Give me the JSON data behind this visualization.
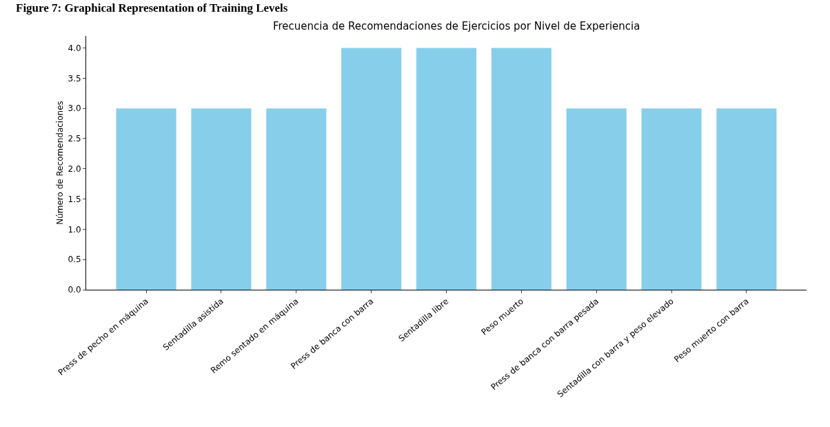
{
  "chart_data": {
    "type": "bar",
    "title": "Frecuencia de Recomendaciones de Ejercicios por Nivel de Experiencia",
    "ylabel": "Número de Recomendaciones",
    "annotations": [
      "Figure 7: Graphical Representation of Training Levels"
    ],
    "categories": [
      "Press de pecho en máquina",
      "Sentadilla asistida",
      "Remo sentado en máquina",
      "Press de banca con barra",
      "Sentadilla libre",
      "Peso muerto",
      "Press de banca con barra pesada",
      "Sentadilla con barra y peso elevado",
      "Peso muerto con barra"
    ],
    "values": [
      3,
      3,
      3,
      4,
      4,
      4,
      3,
      3,
      3
    ],
    "color": "#87ceeb",
    "ylim": [
      0,
      4.2
    ],
    "yticks": [
      {
        "value": 0,
        "label": "0.0"
      },
      {
        "value": 0.5,
        "label": "0.5"
      },
      {
        "value": 1,
        "label": "1.0"
      },
      {
        "value": 1.5,
        "label": "1.5"
      },
      {
        "value": 2,
        "label": "2.0"
      },
      {
        "value": 2.5,
        "label": "2.5"
      },
      {
        "value": 3,
        "label": "3.0"
      },
      {
        "value": 3.5,
        "label": "3.5"
      },
      {
        "value": 4,
        "label": "4.0"
      }
    ],
    "grid": false
  }
}
